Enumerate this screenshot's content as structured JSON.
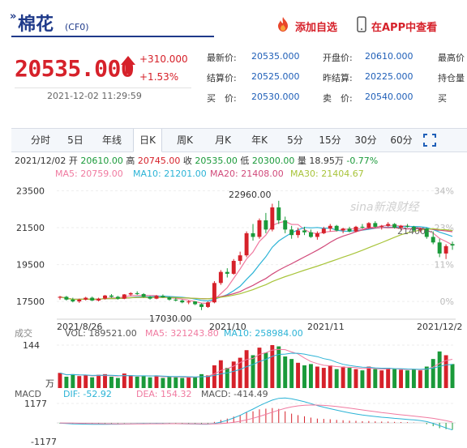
{
  "header": {
    "name": "棉花",
    "code": "(CF0)",
    "add_watchlist": "添加自选",
    "open_app": "在APP中查看"
  },
  "quote": {
    "price": "20535.000",
    "change": "+310.000",
    "change_pct": "+1.53%",
    "timestamp": "2021-12-02 11:29:59"
  },
  "stats": [
    {
      "label": "最新价:",
      "value": "20535.000"
    },
    {
      "label": "开盘价:",
      "value": "20610.000"
    },
    {
      "label": "最高价",
      "value": ""
    },
    {
      "label": "结算价:",
      "value": "20525.000"
    },
    {
      "label": "昨结算:",
      "value": "20225.000"
    },
    {
      "label": "持仓量",
      "value": ""
    },
    {
      "label": "买　价:",
      "value": "20530.000"
    },
    {
      "label": "卖　价:",
      "value": "20540.000"
    },
    {
      "label": "买",
      "value": ""
    }
  ],
  "tabs": [
    "分时",
    "5日",
    "年线",
    "日K",
    "周K",
    "月K",
    "年K",
    "5分",
    "15分",
    "30分",
    "60分"
  ],
  "active_tab": "日K",
  "ohlc_line": {
    "date": "2021/12/02",
    "open_label": "开",
    "open": "20610.00",
    "high_label": "高",
    "high": "20745.00",
    "close_label": "收",
    "close": "20535.00",
    "low_label": "低",
    "low": "20300.00",
    "vol_label": "量",
    "vol": "18.95万",
    "pct": "-0.77%"
  },
  "ma_line": {
    "ma5": "MA5: 20759.00",
    "ma10": "MA10: 21201.00",
    "ma20": "MA20: 21408.00",
    "ma30": "MA30: 21404.67"
  },
  "vol_line": {
    "label": "成交",
    "vol": "VOL: 189521.00",
    "ma5": "MA5: 321243.80",
    "ma10": "MA10: 258984.00"
  },
  "macd_line": {
    "label": "MACD",
    "dif": "DIF: -52.92",
    "dea": "DEA: 154.32",
    "macd": "MACD: -414.49"
  },
  "watermark": "sina新浪财经",
  "colors": {
    "up": "#d6212a",
    "down": "#1a9a3a",
    "ma5": "#f07aa0",
    "ma10": "#2bb3d6",
    "ma20": "#d14a7a",
    "ma30": "#a8c43a",
    "blue": "#1f3a8a"
  },
  "chart_data": {
    "type": "candlestick",
    "price_axis": {
      "labels": [
        "23500",
        "21500",
        "19500",
        "17500"
      ],
      "values": [
        23500,
        21500,
        19500,
        17500
      ],
      "ylim": [
        16800,
        23700
      ]
    },
    "pct_axis": {
      "labels": [
        "34%",
        "23%",
        "11%",
        "0%"
      ]
    },
    "date_labels": [
      "2021/8/26",
      "2021/10",
      "2021/11",
      "2021/12/2"
    ],
    "annotations": {
      "max": "22960.00",
      "min": "17030.00",
      "range_tag": "21400~"
    },
    "candles": [
      [
        17700,
        17800,
        17600,
        17750
      ],
      [
        17750,
        17800,
        17550,
        17600
      ],
      [
        17600,
        17700,
        17450,
        17500
      ],
      [
        17500,
        17650,
        17420,
        17600
      ],
      [
        17600,
        17750,
        17550,
        17700
      ],
      [
        17700,
        17760,
        17520,
        17550
      ],
      [
        17550,
        17700,
        17500,
        17650
      ],
      [
        17650,
        17850,
        17600,
        17820
      ],
      [
        17820,
        17900,
        17700,
        17750
      ],
      [
        17750,
        17800,
        17600,
        17650
      ],
      [
        17650,
        17900,
        17620,
        17880
      ],
      [
        17880,
        18000,
        17800,
        17950
      ],
      [
        17950,
        18050,
        17850,
        17900
      ],
      [
        17900,
        17950,
        17700,
        17750
      ],
      [
        17750,
        17800,
        17600,
        17650
      ],
      [
        17650,
        17850,
        17620,
        17800
      ],
      [
        17800,
        17880,
        17700,
        17720
      ],
      [
        17720,
        17760,
        17550,
        17600
      ],
      [
        17600,
        17700,
        17500,
        17550
      ],
      [
        17550,
        17600,
        17400,
        17450
      ],
      [
        17450,
        17550,
        17350,
        17500
      ],
      [
        17500,
        17520,
        17300,
        17350
      ],
      [
        17350,
        17400,
        17030,
        17200
      ],
      [
        17200,
        17500,
        17150,
        17450
      ],
      [
        17450,
        18600,
        17400,
        18500
      ],
      [
        18500,
        19200,
        18400,
        19100
      ],
      [
        19100,
        19300,
        18800,
        19000
      ],
      [
        19000,
        19800,
        18950,
        19700
      ],
      [
        19700,
        20200,
        19500,
        20000
      ],
      [
        20000,
        21300,
        19900,
        21200
      ],
      [
        21200,
        21700,
        20800,
        21000
      ],
      [
        21000,
        22000,
        20900,
        21900
      ],
      [
        21900,
        22300,
        21200,
        21400
      ],
      [
        21400,
        22800,
        21300,
        22600
      ],
      [
        22600,
        22960,
        21700,
        21900
      ],
      [
        21900,
        22100,
        21200,
        21400
      ],
      [
        21400,
        21600,
        20900,
        21100
      ],
      [
        21100,
        21500,
        20950,
        21350
      ],
      [
        21350,
        21550,
        21100,
        21250
      ],
      [
        21250,
        21400,
        20950,
        21000
      ],
      [
        21000,
        21300,
        20850,
        21200
      ],
      [
        21200,
        21550,
        21150,
        21450
      ],
      [
        21450,
        21700,
        21300,
        21600
      ],
      [
        21600,
        21650,
        21300,
        21350
      ],
      [
        21350,
        21500,
        21200,
        21450
      ],
      [
        21450,
        21550,
        21250,
        21300
      ],
      [
        21300,
        21600,
        21250,
        21550
      ],
      [
        21550,
        21700,
        21450,
        21500
      ],
      [
        21500,
        21800,
        21450,
        21750
      ],
      [
        21750,
        21850,
        21500,
        21550
      ],
      [
        21550,
        21650,
        21400,
        21600
      ],
      [
        21600,
        21800,
        21550,
        21700
      ],
      [
        21700,
        21750,
        21450,
        21500
      ],
      [
        21500,
        21650,
        21350,
        21600
      ],
      [
        21600,
        21700,
        21500,
        21550
      ],
      [
        21550,
        21600,
        21300,
        21350
      ],
      [
        21350,
        21500,
        21250,
        21450
      ],
      [
        21450,
        21500,
        20900,
        21000
      ],
      [
        21000,
        21300,
        20600,
        20700
      ],
      [
        20700,
        20900,
        19900,
        20100
      ],
      [
        20100,
        20600,
        19800,
        20500
      ],
      [
        20610,
        20745,
        20300,
        20535
      ]
    ],
    "volume": [
      120,
      90,
      110,
      95,
      100,
      85,
      105,
      110,
      90,
      80,
      115,
      100,
      90,
      95,
      85,
      100,
      80,
      90,
      85,
      80,
      90,
      85,
      110,
      100,
      180,
      220,
      160,
      210,
      240,
      300,
      260,
      320,
      280,
      340,
      330,
      250,
      230,
      200,
      180,
      190,
      170,
      160,
      180,
      150,
      170,
      160,
      150,
      140,
      170,
      150,
      140,
      160,
      150,
      145,
      140,
      150,
      140,
      170,
      230,
      290,
      260,
      190
    ],
    "volume_axis_labels": [
      "144",
      "万"
    ],
    "macd_axis_labels": [
      "1177",
      "-1177"
    ],
    "macd_hist": [
      -40,
      -50,
      -60,
      -55,
      -50,
      -45,
      -40,
      -35,
      -30,
      -30,
      -20,
      -10,
      -5,
      -10,
      -15,
      -15,
      -20,
      -25,
      -30,
      -35,
      -40,
      -45,
      -50,
      -40,
      60,
      180,
      260,
      380,
      480,
      640,
      700,
      820,
      860,
      900,
      850,
      700,
      560,
      470,
      400,
      320,
      260,
      240,
      220,
      180,
      160,
      130,
      120,
      100,
      110,
      90,
      80,
      80,
      60,
      50,
      40,
      20,
      0,
      -80,
      -200,
      -320,
      -380,
      -414
    ]
  }
}
